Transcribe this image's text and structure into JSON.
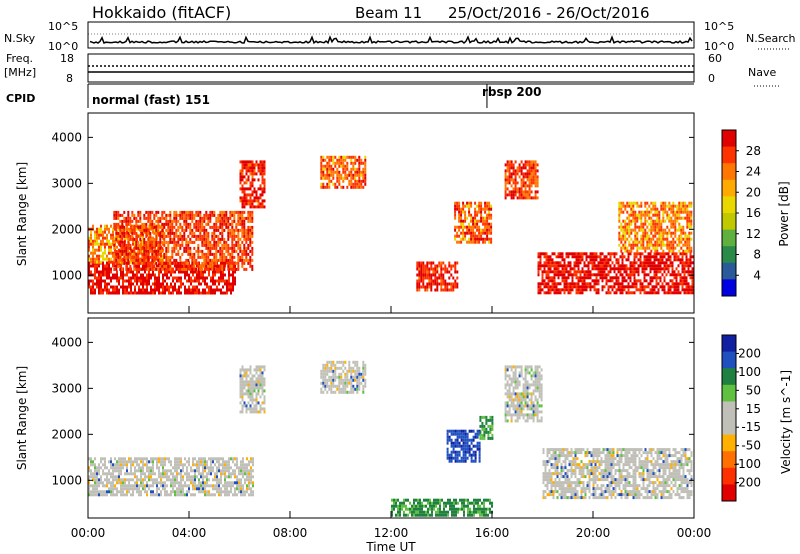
{
  "header": {
    "station": "Hokkaido (fitACF)",
    "beam": "Beam 11",
    "date_range": "25/Oct/2016 - 26/Oct/2016"
  },
  "strip_noise": {
    "left_label": "N.Sky",
    "right_label": "N.Search",
    "left_ticks": [
      "10^5",
      "10^0"
    ],
    "right_ticks": [
      "10^5",
      "10^0"
    ]
  },
  "strip_freq": {
    "left_label_1": "Freq.",
    "left_label_2": "[MHz]",
    "left_ticks": [
      "18",
      "8"
    ],
    "right_label": "Nave",
    "right_ticks": [
      "60",
      "0"
    ]
  },
  "strip_cpid": {
    "left_label": "CPID",
    "modes": [
      {
        "label": "normal (fast) 151",
        "start_hour": 0
      },
      {
        "label": "rbsp 200",
        "start_hour": 15.8
      }
    ]
  },
  "chart_data": [
    {
      "type": "heatmap",
      "panel": "power",
      "ylabel": "Slant Range [km]",
      "ylim": [
        180,
        4530
      ],
      "yticks": [
        1000,
        2000,
        3000,
        4000
      ],
      "xlim_hours": [
        0,
        24
      ],
      "colorbar": {
        "label": "Power [dB]",
        "ticks": [
          "28",
          "24",
          "20",
          "16",
          "12",
          "8",
          "4"
        ],
        "colors": [
          "#e00000",
          "#ff3300",
          "#ff7700",
          "#ffaa00",
          "#e8d800",
          "#c0c800",
          "#60b040",
          "#2a8a4a",
          "#2a5a9a",
          "#0000e0"
        ]
      },
      "regions": [
        {
          "t": [
            0.0,
            5.8
          ],
          "r": [
            600,
            1300
          ],
          "level": 26
        },
        {
          "t": [
            0.0,
            3.0
          ],
          "r": [
            1300,
            2100
          ],
          "level": 18
        },
        {
          "t": [
            1.0,
            6.5
          ],
          "r": [
            1100,
            2400
          ],
          "level": 22
        },
        {
          "t": [
            6.0,
            7.0
          ],
          "r": [
            2500,
            3500
          ],
          "level": 24
        },
        {
          "t": [
            9.2,
            11.0
          ],
          "r": [
            2900,
            3600
          ],
          "level": 20
        },
        {
          "t": [
            13.0,
            14.6
          ],
          "r": [
            700,
            1300
          ],
          "level": 24
        },
        {
          "t": [
            14.5,
            16.0
          ],
          "r": [
            1700,
            2600
          ],
          "level": 20
        },
        {
          "t": [
            16.5,
            17.8
          ],
          "r": [
            2700,
            3500
          ],
          "level": 22
        },
        {
          "t": [
            17.8,
            23.9
          ],
          "r": [
            600,
            1500
          ],
          "level": 26
        },
        {
          "t": [
            21.0,
            23.9
          ],
          "r": [
            1500,
            2600
          ],
          "level": 18
        }
      ]
    },
    {
      "type": "heatmap",
      "panel": "velocity",
      "ylabel": "Slant Range [km]",
      "ylim": [
        180,
        4530
      ],
      "yticks": [
        1000,
        2000,
        3000,
        4000
      ],
      "xlim_hours": [
        0,
        24
      ],
      "colorbar": {
        "label": "Velocity [m s^-1]",
        "ticks": [
          "200",
          "100",
          "50",
          "15",
          "-15",
          "-50",
          "-100",
          "-200"
        ],
        "colors": [
          "#1020a0",
          "#2050c0",
          "#208040",
          "#60c040",
          "#c0c0b8",
          "#c0c0b8",
          "#ffb000",
          "#ff7000",
          "#ff3000",
          "#e00000"
        ]
      },
      "regions": [
        {
          "t": [
            0.0,
            6.5
          ],
          "r": [
            700,
            1500
          ],
          "level": 0
        },
        {
          "t": [
            6.0,
            7.0
          ],
          "r": [
            2500,
            3500
          ],
          "level": 0
        },
        {
          "t": [
            9.2,
            11.0
          ],
          "r": [
            2900,
            3600
          ],
          "level": 0
        },
        {
          "t": [
            14.2,
            15.5
          ],
          "r": [
            1400,
            2100
          ],
          "level": 150
        },
        {
          "t": [
            15.5,
            16.0
          ],
          "r": [
            1900,
            2400
          ],
          "level": 60
        },
        {
          "t": [
            16.5,
            18.0
          ],
          "r": [
            2300,
            3500
          ],
          "level": 0
        },
        {
          "t": [
            18.0,
            23.9
          ],
          "r": [
            600,
            1700
          ],
          "level": 0
        },
        {
          "t": [
            12.0,
            16.0
          ],
          "r": [
            250,
            600
          ],
          "level": 60
        }
      ]
    }
  ],
  "xaxis": {
    "ticks": [
      "00:00",
      "04:00",
      "08:00",
      "12:00",
      "16:00",
      "20:00",
      "00:00"
    ],
    "label": "Time UT"
  }
}
